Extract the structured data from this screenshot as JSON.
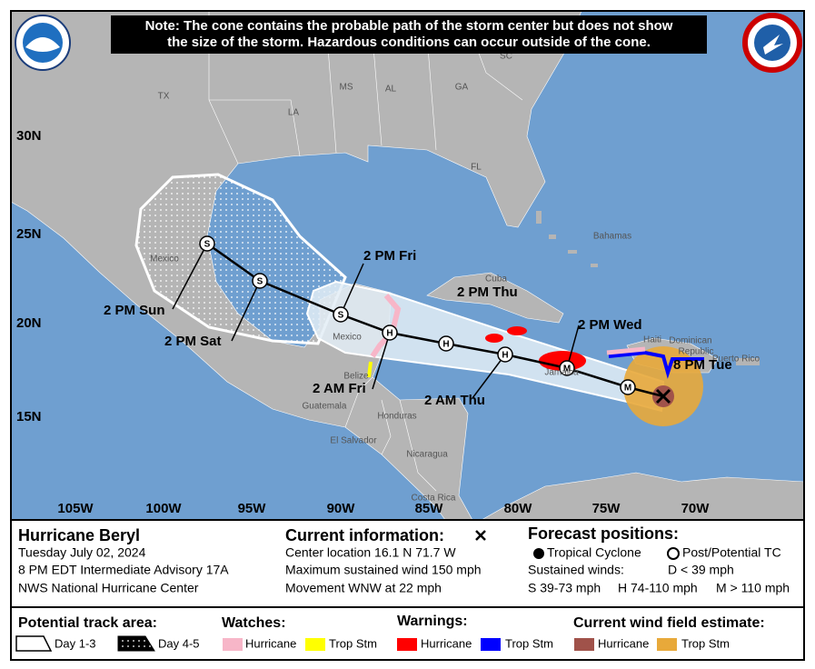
{
  "notice": [
    "Note: The cone contains the probable path of the storm center but does not show",
    "the size of the storm. Hazardous conditions can occur outside of the cone."
  ],
  "map": {
    "lat_labels": [
      "30N",
      "25N",
      "20N",
      "15N"
    ],
    "lon_labels": [
      "105W",
      "100W",
      "95W",
      "90W",
      "85W",
      "80W",
      "75W",
      "70W"
    ],
    "place_labels": [
      "TX",
      "LA",
      "MS",
      "AL",
      "GA",
      "SC",
      "FL",
      "Mexico",
      "Cuba",
      "Bahamas",
      "Haiti",
      "Dominican",
      "Republic",
      "Puerto Rico",
      "Jamaica",
      "Mexico",
      "Belize",
      "Guatemala",
      "Honduras",
      "El Salvador",
      "Nicaragua",
      "Costa Rica"
    ],
    "track_symbols": [
      "M",
      "M",
      "H",
      "H",
      "H",
      "S",
      "S",
      "S"
    ],
    "time_labels": [
      "8 PM Tue",
      "2 PM Wed",
      "2 AM Thu",
      "2 PM Thu",
      "2 AM Fri",
      "2 PM Fri",
      "2 PM Sat",
      "2 PM Sun"
    ]
  },
  "info": {
    "storm": "Hurricane Beryl",
    "date": "Tuesday July 02, 2024",
    "advisory": "8 PM EDT Intermediate Advisory 17A",
    "center": "NWS National Hurricane Center",
    "current_heading": "Current information:",
    "current_lines": [
      "Center location 16.1 N 71.7 W",
      "Maximum sustained wind 150 mph",
      "Movement WNW at 22 mph"
    ],
    "forecast_heading": "Forecast positions:",
    "tropical_cyclone": "Tropical Cyclone",
    "post_tc": "Post/Potential TC",
    "sustained": "Sustained winds:",
    "winds": [
      "D < 39 mph",
      "S 39-73 mph",
      "H 74-110 mph",
      "M > 110 mph"
    ]
  },
  "legend": {
    "track_heading": "Potential track area:",
    "day13": "Day 1-3",
    "day45": "Day 4-5",
    "watches_heading": "Watches:",
    "watch_hurricane": "Hurricane",
    "watch_ts": "Trop Stm",
    "warnings_heading": "Warnings:",
    "warning_hurricane": "Hurricane",
    "warning_ts": "Trop Stm",
    "wind_heading": "Current wind field estimate:",
    "wind_hurricane": "Hurricane",
    "wind_ts": "Trop Stm"
  }
}
